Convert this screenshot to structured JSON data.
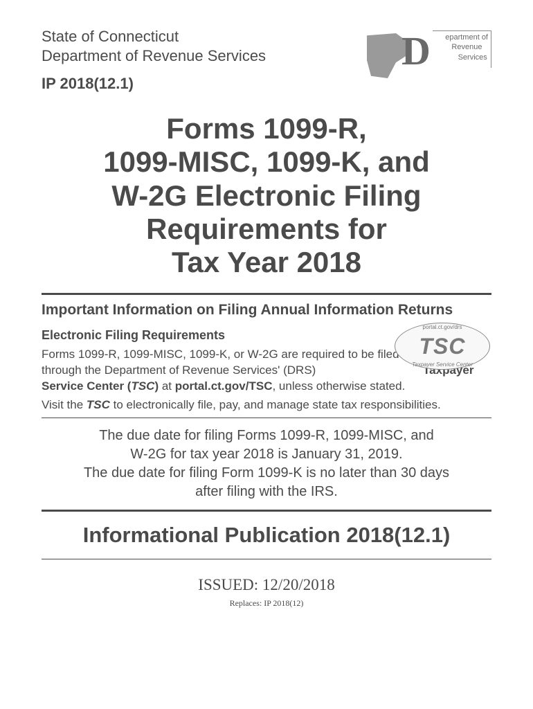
{
  "header": {
    "state": "State of Connecticut",
    "department": "Department of Revenue Services",
    "ip_number": "IP 2018(12.1)",
    "logo": {
      "letter": "D",
      "line1": "epartment of",
      "line2": "evenue",
      "line3": "ervices"
    }
  },
  "main_title": {
    "line1": "Forms 1099-R,",
    "line2": "1099-MISC, 1099-K, and",
    "line3": "W-2G Electronic Filing",
    "line4": "Requirements for",
    "line5": "Tax Year 2018"
  },
  "section_heading": "Important Information on Filing Annual Information Returns",
  "efiling": {
    "subtitle": "Electronic Filing Requirements",
    "para1_a": "Forms 1099-R, 1099-MISC, 1099-K, or W-2G are required to be filed electronically through the Department of Revenue Services' (DRS) ",
    "para1_b": "Taxpayer Service Center (",
    "para1_c": "TSC",
    "para1_d": ") ",
    "para1_e": "at ",
    "para1_f": "portal.ct.gov/TSC",
    "para1_g": ", unless otherwise stated.",
    "para2_a": "Visit the ",
    "para2_b": "TSC",
    "para2_c": " to electronically file, pay, and manage state tax responsibilities."
  },
  "tsc_badge": {
    "top_text": "portal.ct.gov/drs",
    "main": "TSC",
    "bottom_text": "Taxpayer Service Center"
  },
  "due_dates": {
    "line1": "The due date for filing Forms 1099-R, 1099-MISC, and",
    "line2": "W-2G for tax year 2018 is January 31, 2019.",
    "line3": "The due date for filing Form 1099-K is no later than 30 days",
    "line4": "after filing with the IRS."
  },
  "publication_title": "Informational Publication 2018(12.1)",
  "issued": "ISSUED: 12/20/2018",
  "replaces": "Replaces: IP 2018(12)",
  "colors": {
    "text": "#4a4a4a",
    "logo_gray": "#9a9a9a",
    "background": "#ffffff"
  }
}
